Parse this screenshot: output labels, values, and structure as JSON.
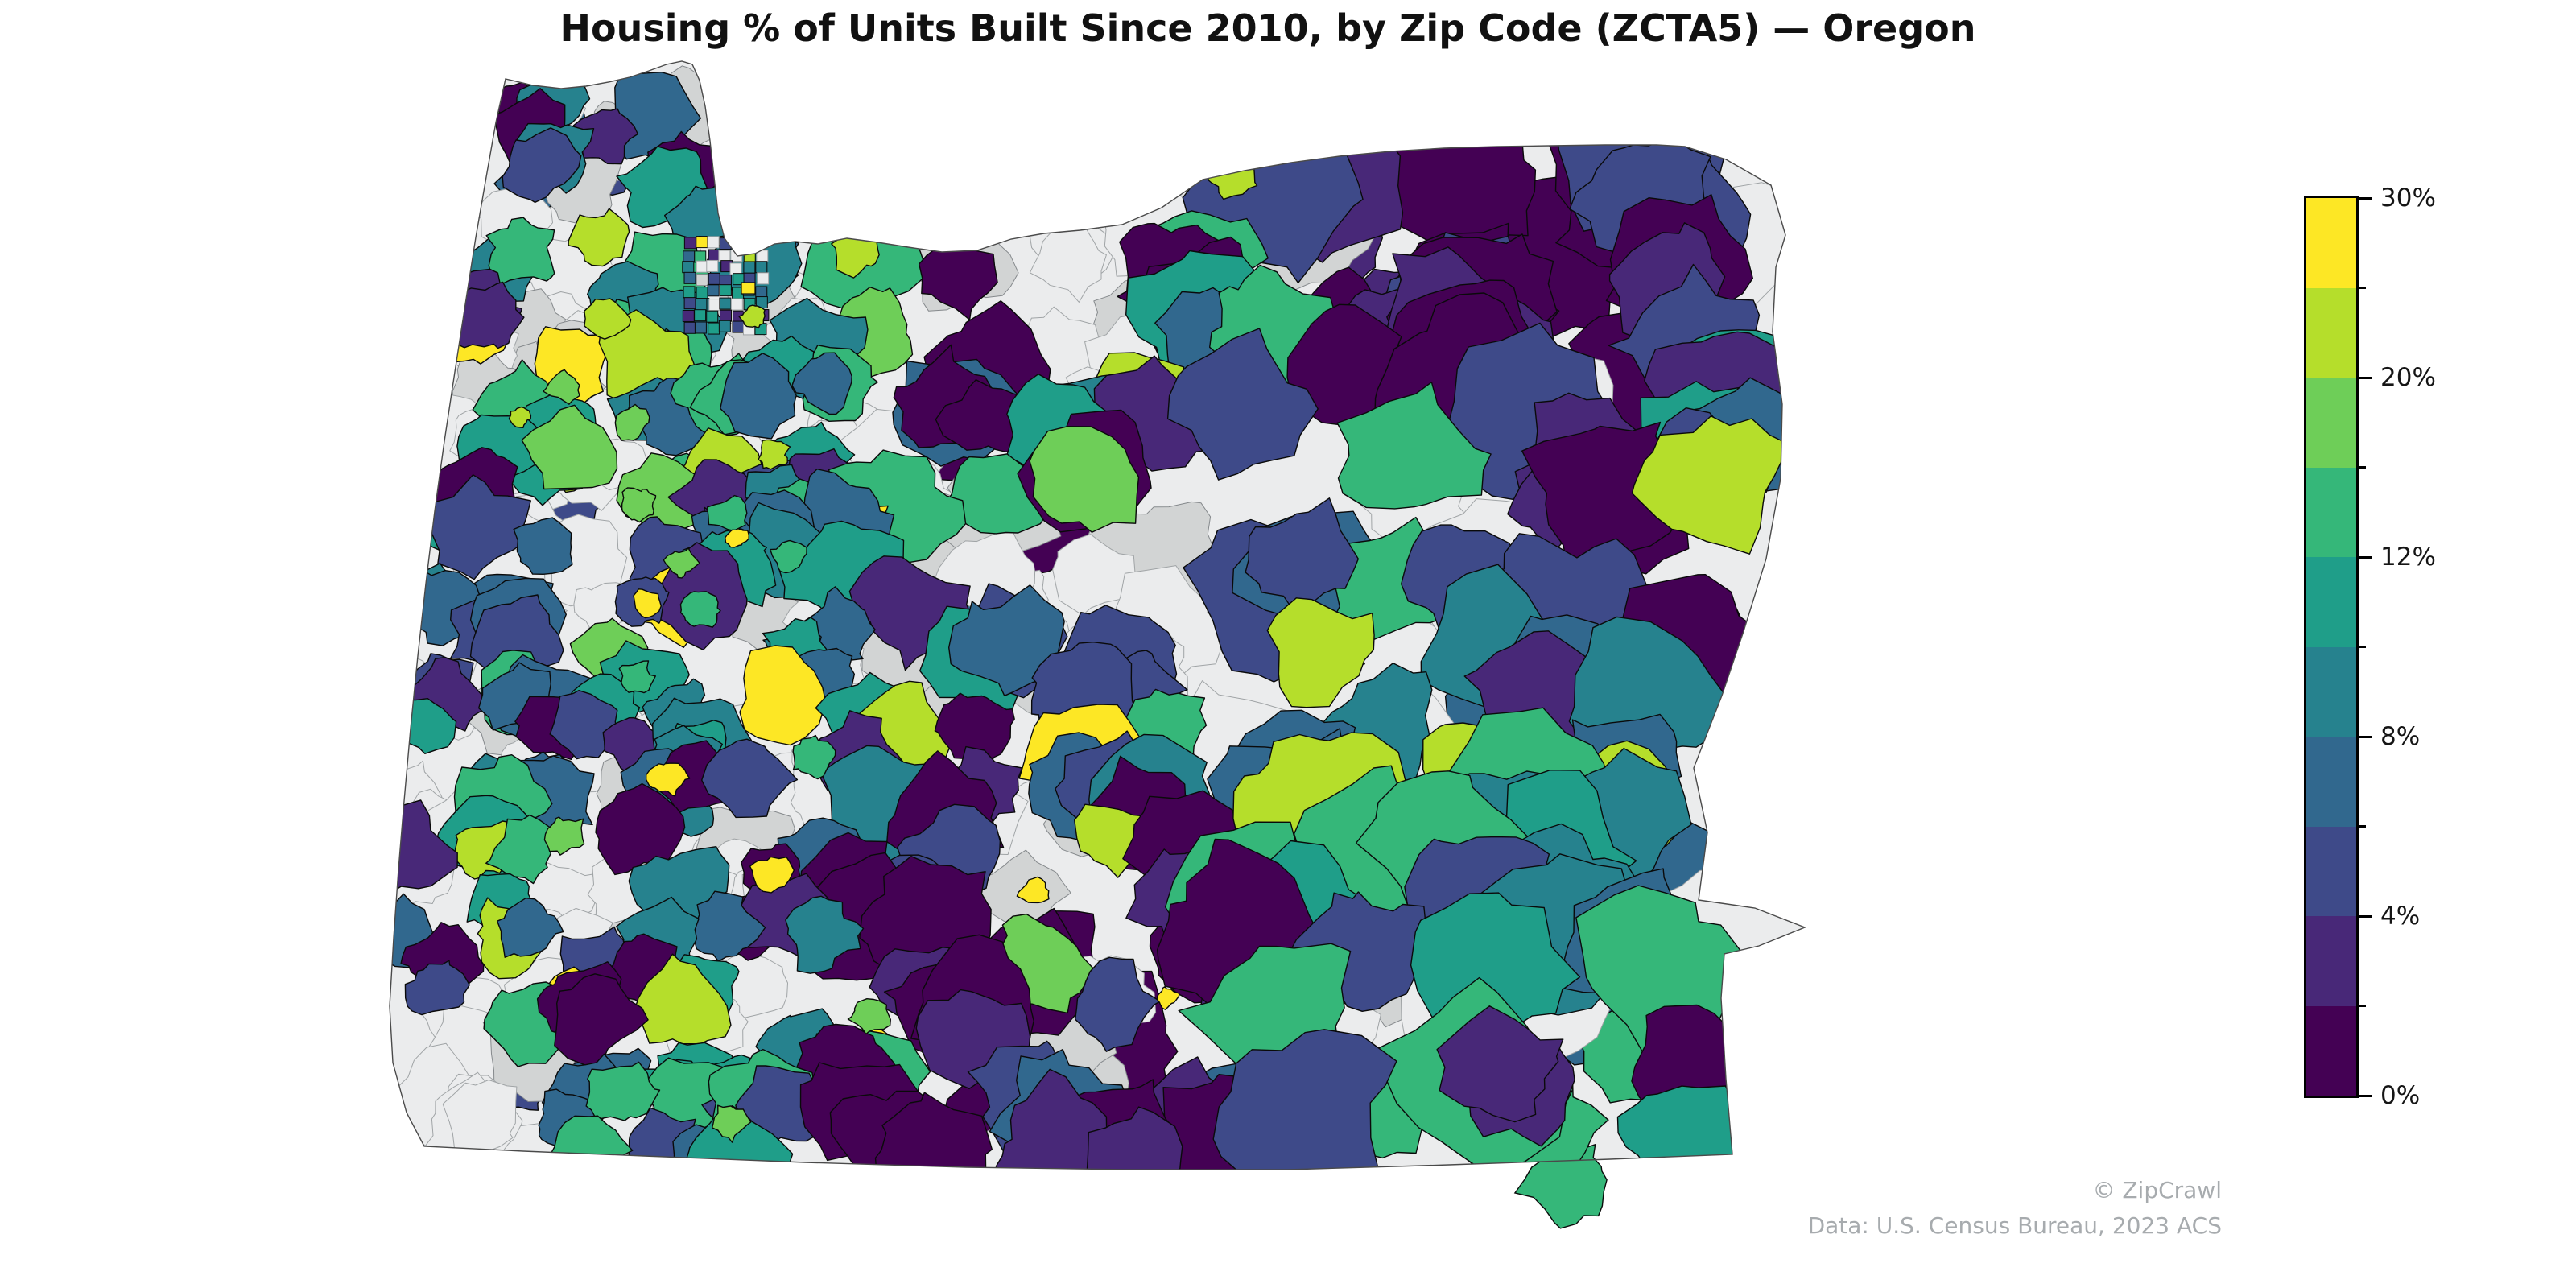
{
  "title": "Housing % of Units Built Since 2010, by Zip Code (ZCTA5) — Oregon",
  "attribution": {
    "watermark": "© ZipCrawl",
    "source": "Data: U.S. Census Bureau, 2023 ACS"
  },
  "colors": {
    "background": "#ffffff",
    "title_text": "#111111",
    "attribution_text": "#a7abae",
    "state_border": "#4a4a4a",
    "zip_border": "#0a0a0a",
    "base_parcel_border": "#a0a4a6",
    "no_data_border": "#85898c"
  },
  "chart_data": {
    "type": "choropleth",
    "title": "Housing % of Units Built Since 2010, by Zip Code (ZCTA5) — Oregon",
    "region": "Oregon",
    "geography": "ZCTA5 (zip code tabulation areas)",
    "metric": "Percent of housing units built since 2010",
    "value_domain_pct": [
      0,
      30
    ],
    "legend_position": "right",
    "colorbar": {
      "orientation": "vertical",
      "tick_labels_top_to_bottom": [
        "30%",
        "20%",
        "12%",
        "8%",
        "4%",
        "0%"
      ],
      "major_ticks": [
        {
          "label": "30%",
          "pos": 0.0
        },
        {
          "label": "20%",
          "pos": 0.2
        },
        {
          "label": "12%",
          "pos": 0.4
        },
        {
          "label": "8%",
          "pos": 0.6
        },
        {
          "label": "4%",
          "pos": 0.8
        },
        {
          "label": "0%",
          "pos": 1.0
        }
      ],
      "minor_tick_positions": [
        0.1,
        0.3,
        0.5,
        0.7,
        0.9
      ],
      "band_colors_top_to_bottom": [
        "#fde725",
        "#b5de2b",
        "#6ece58",
        "#35b779",
        "#1f9e89",
        "#26828e",
        "#31688e",
        "#3e4a89",
        "#482878",
        "#440154"
      ]
    },
    "fills": {
      "base_parcel": "#ebeced",
      "no_data": "#d2d4d4"
    }
  }
}
